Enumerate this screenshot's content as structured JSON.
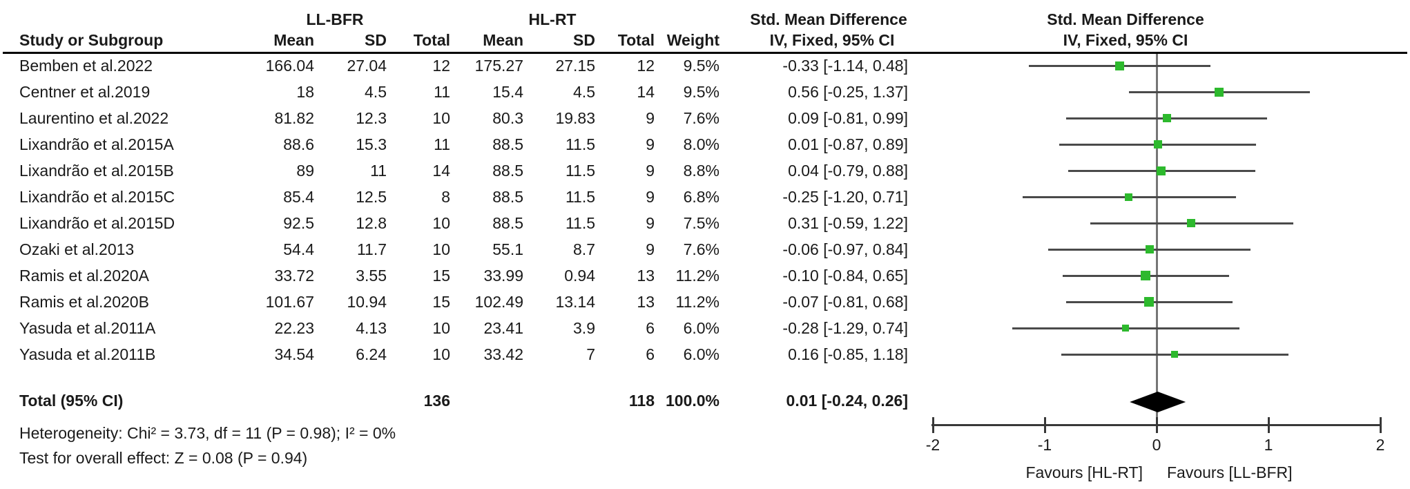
{
  "figure_title": "Forest plot: LL-BFR vs HL-RT, Std. Mean Difference (IV, Fixed, 95% CI)",
  "headers": {
    "exp_group": "LL-BFR",
    "ctrl_group": "HL-RT",
    "smd_text_col": "Std. Mean Difference",
    "iv_text_col": "IV, Fixed, 95% CI",
    "smd_plot_col": "Std. Mean Difference",
    "iv_plot_col": "IV, Fixed, 95% CI",
    "study": "Study or Subgroup",
    "mean1": "Mean",
    "sd1": "SD",
    "total1": "Total",
    "mean2": "Mean",
    "sd2": "SD",
    "total2": "Total",
    "weight": "Weight"
  },
  "table": {
    "rows": [
      {
        "name": "Bemben et al.2022",
        "mean1": "166.04",
        "sd1": "27.04",
        "total1": "12",
        "mean2": "175.27",
        "sd2": "27.15",
        "total2": "12",
        "weight": "9.5%",
        "ci": "-0.33 [-1.14, 0.48]",
        "est": -0.33,
        "lo": -1.14,
        "hi": 0.48,
        "w": 9.5
      },
      {
        "name": "Centner et al.2019",
        "mean1": "18",
        "sd1": "4.5",
        "total1": "11",
        "mean2": "15.4",
        "sd2": "4.5",
        "total2": "14",
        "weight": "9.5%",
        "ci": "0.56 [-0.25, 1.37]",
        "est": 0.56,
        "lo": -0.25,
        "hi": 1.37,
        "w": 9.5
      },
      {
        "name": "Laurentino et al.2022",
        "mean1": "81.82",
        "sd1": "12.3",
        "total1": "10",
        "mean2": "80.3",
        "sd2": "19.83",
        "total2": "9",
        "weight": "7.6%",
        "ci": "0.09 [-0.81, 0.99]",
        "est": 0.09,
        "lo": -0.81,
        "hi": 0.99,
        "w": 7.6
      },
      {
        "name": "Lixandrão et al.2015A",
        "mean1": "88.6",
        "sd1": "15.3",
        "total1": "11",
        "mean2": "88.5",
        "sd2": "11.5",
        "total2": "9",
        "weight": "8.0%",
        "ci": "0.01 [-0.87, 0.89]",
        "est": 0.01,
        "lo": -0.87,
        "hi": 0.89,
        "w": 8.0
      },
      {
        "name": "Lixandrão et al.2015B",
        "mean1": "89",
        "sd1": "11",
        "total1": "14",
        "mean2": "88.5",
        "sd2": "11.5",
        "total2": "9",
        "weight": "8.8%",
        "ci": "0.04 [-0.79, 0.88]",
        "est": 0.04,
        "lo": -0.79,
        "hi": 0.88,
        "w": 8.8
      },
      {
        "name": "Lixandrão et al.2015C",
        "mean1": "85.4",
        "sd1": "12.5",
        "total1": "8",
        "mean2": "88.5",
        "sd2": "11.5",
        "total2": "9",
        "weight": "6.8%",
        "ci": "-0.25 [-1.20, 0.71]",
        "est": -0.25,
        "lo": -1.2,
        "hi": 0.71,
        "w": 6.8
      },
      {
        "name": "Lixandrão et al.2015D",
        "mean1": "92.5",
        "sd1": "12.8",
        "total1": "10",
        "mean2": "88.5",
        "sd2": "11.5",
        "total2": "9",
        "weight": "7.5%",
        "ci": "0.31 [-0.59, 1.22]",
        "est": 0.31,
        "lo": -0.59,
        "hi": 1.22,
        "w": 7.5
      },
      {
        "name": "Ozaki et al.2013",
        "mean1": "54.4",
        "sd1": "11.7",
        "total1": "10",
        "mean2": "55.1",
        "sd2": "8.7",
        "total2": "9",
        "weight": "7.6%",
        "ci": "-0.06 [-0.97, 0.84]",
        "est": -0.06,
        "lo": -0.97,
        "hi": 0.84,
        "w": 7.6
      },
      {
        "name": "Ramis et al.2020A",
        "mean1": "33.72",
        "sd1": "3.55",
        "total1": "15",
        "mean2": "33.99",
        "sd2": "0.94",
        "total2": "13",
        "weight": "11.2%",
        "ci": "-0.10 [-0.84, 0.65]",
        "est": -0.1,
        "lo": -0.84,
        "hi": 0.65,
        "w": 11.2
      },
      {
        "name": "Ramis et al.2020B",
        "mean1": "101.67",
        "sd1": "10.94",
        "total1": "15",
        "mean2": "102.49",
        "sd2": "13.14",
        "total2": "13",
        "weight": "11.2%",
        "ci": "-0.07 [-0.81, 0.68]",
        "est": -0.07,
        "lo": -0.81,
        "hi": 0.68,
        "w": 11.2
      },
      {
        "name": "Yasuda et al.2011A",
        "mean1": "22.23",
        "sd1": "4.13",
        "total1": "10",
        "mean2": "23.41",
        "sd2": "3.9",
        "total2": "6",
        "weight": "6.0%",
        "ci": "-0.28 [-1.29, 0.74]",
        "est": -0.28,
        "lo": -1.29,
        "hi": 0.74,
        "w": 6.0
      },
      {
        "name": "Yasuda et al.2011B",
        "mean1": "34.54",
        "sd1": "6.24",
        "total1": "10",
        "mean2": "33.42",
        "sd2": "7",
        "total2": "6",
        "weight": "6.0%",
        "ci": "0.16 [-0.85, 1.18]",
        "est": 0.16,
        "lo": -0.85,
        "hi": 1.18,
        "w": 6.0
      }
    ],
    "total": {
      "label": "Total (95% CI)",
      "total1": "136",
      "total2": "118",
      "weight": "100.0%",
      "ci": "0.01 [-0.24, 0.26]",
      "est": 0.01,
      "lo": -0.24,
      "hi": 0.26
    }
  },
  "stats": {
    "heterogeneity": "Heterogeneity: Chi² = 3.73, df = 11 (P = 0.98); I² = 0%",
    "overall_effect": "Test for overall effect: Z = 0.08 (P = 0.94)"
  },
  "axis": {
    "ticks": [
      "-2",
      "-1",
      "0",
      "1",
      "2"
    ],
    "tick_values": [
      -2,
      -1,
      0,
      1,
      2
    ],
    "favours_left": "Favours [HL-RT]",
    "favours_right": "Favours [LL-BFR]"
  },
  "colors": {
    "marker_green": "#2db92d",
    "diamond": "#000000",
    "whisker": "#4a4a4a",
    "zero_line": "#757575",
    "axis": "#383838"
  },
  "chart_data": {
    "type": "scatter",
    "subtype": "forest-plot",
    "title": "Std. Mean Difference, IV, Fixed, 95% CI",
    "studies": [
      "Bemben et al.2022",
      "Centner et al.2019",
      "Laurentino et al.2022",
      "Lixandrão et al.2015A",
      "Lixandrão et al.2015B",
      "Lixandrão et al.2015C",
      "Lixandrão et al.2015D",
      "Ozaki et al.2013",
      "Ramis et al.2020A",
      "Ramis et al.2020B",
      "Yasuda et al.2011A",
      "Yasuda et al.2011B"
    ],
    "estimates": [
      -0.33,
      0.56,
      0.09,
      0.01,
      0.04,
      -0.25,
      0.31,
      -0.06,
      -0.1,
      -0.07,
      -0.28,
      0.16
    ],
    "ci_low": [
      -1.14,
      -0.25,
      -0.81,
      -0.87,
      -0.79,
      -1.2,
      -0.59,
      -0.97,
      -0.84,
      -0.81,
      -1.29,
      -0.85
    ],
    "ci_high": [
      0.48,
      1.37,
      0.99,
      0.89,
      0.88,
      0.71,
      1.22,
      0.84,
      0.65,
      0.68,
      0.74,
      1.18
    ],
    "weights_pct": [
      9.5,
      9.5,
      7.6,
      8.0,
      8.8,
      6.8,
      7.5,
      7.6,
      11.2,
      11.2,
      6.0,
      6.0
    ],
    "exp_n": [
      12,
      11,
      10,
      11,
      14,
      8,
      10,
      10,
      15,
      15,
      10,
      10
    ],
    "ctrl_n": [
      12,
      14,
      9,
      9,
      9,
      9,
      9,
      9,
      13,
      13,
      6,
      6
    ],
    "total": {
      "estimate": 0.01,
      "ci_low": -0.24,
      "ci_high": 0.26,
      "exp_n": 136,
      "ctrl_n": 118,
      "weight_pct": 100.0
    },
    "heterogeneity": {
      "chi2": 3.73,
      "df": 11,
      "p": 0.98,
      "i2_pct": 0
    },
    "overall_effect": {
      "z": 0.08,
      "p": 0.94
    },
    "xlim": [
      -2,
      2
    ],
    "x_ticks": [
      -2,
      -1,
      0,
      1,
      2
    ],
    "x_axis_labels": [
      "Favours [HL-RT]",
      "Favours [LL-BFR]"
    ]
  }
}
